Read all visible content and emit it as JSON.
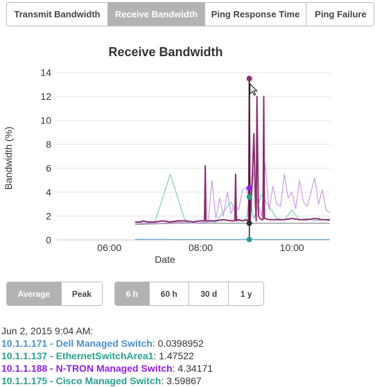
{
  "tabs": [
    {
      "label": "Transmit Bandwidth",
      "active": false
    },
    {
      "label": "Receive Bandwidth",
      "active": true
    },
    {
      "label": "Ping Response Time",
      "active": false
    },
    {
      "label": "Ping Failure",
      "active": false
    }
  ],
  "chart_data": {
    "type": "line",
    "title": "Receive Bandwidth",
    "xlabel": "Date",
    "ylabel": "Bandwidth (%)",
    "ylim": [
      0,
      14.5
    ],
    "yticks": [
      0,
      2,
      4,
      6,
      8,
      10,
      12,
      14
    ],
    "xlim": [
      "04:50",
      "10:50"
    ],
    "xticks": [
      "06:00",
      "08:00",
      "10:00"
    ],
    "grid": "horizontal",
    "crosshair_time": "09:04",
    "cursor_value": 13.5,
    "series": [
      {
        "color": "#8a2e6e",
        "x": [
          "06:34",
          "06:40",
          "06:45",
          "06:50",
          "07:00",
          "07:10",
          "07:20",
          "07:30",
          "07:40",
          "07:50",
          "08:00",
          "08:05",
          "08:06",
          "08:07",
          "08:20",
          "08:30",
          "08:40",
          "08:45",
          "08:46",
          "08:47",
          "08:50",
          "08:55",
          "09:00",
          "09:02",
          "09:03",
          "09:04",
          "09:05",
          "09:06",
          "09:08",
          "09:10",
          "09:12",
          "09:13",
          "09:14",
          "09:16",
          "09:18",
          "09:20",
          "09:22",
          "09:23",
          "09:24",
          "09:30",
          "09:40",
          "09:50",
          "10:00",
          "10:10",
          "10:20",
          "10:30",
          "10:40",
          "10:50"
        ],
        "y": [
          1.5,
          1.5,
          1.6,
          1.5,
          1.5,
          1.6,
          1.5,
          1.6,
          1.6,
          1.5,
          1.6,
          1.6,
          6.2,
          1.6,
          1.6,
          1.7,
          1.6,
          1.6,
          5.5,
          1.6,
          1.7,
          1.6,
          1.7,
          1.6,
          1.6,
          13.5,
          1.5,
          2.5,
          5.5,
          8.9,
          3.0,
          1.6,
          12.0,
          2.0,
          1.8,
          1.7,
          1.7,
          12.0,
          1.8,
          1.7,
          1.7,
          1.7,
          1.8,
          1.7,
          1.7,
          1.8,
          1.7,
          1.7
        ]
      },
      {
        "color": "#c99be6",
        "x": [
          "06:34",
          "06:50",
          "07:10",
          "07:30",
          "07:50",
          "08:10",
          "08:15",
          "08:20",
          "08:25",
          "08:30",
          "08:35",
          "08:40",
          "08:45",
          "08:50",
          "08:55",
          "09:00",
          "09:05",
          "09:10",
          "09:15",
          "09:20",
          "09:25",
          "09:30",
          "09:35",
          "09:40",
          "09:45",
          "09:50",
          "09:55",
          "10:00",
          "10:05",
          "10:10",
          "10:15",
          "10:20",
          "10:25",
          "10:30",
          "10:35",
          "10:40",
          "10:45",
          "10:50"
        ],
        "y": [
          1.4,
          1.4,
          1.4,
          1.5,
          1.4,
          1.5,
          5.0,
          1.8,
          3.5,
          2.0,
          4.0,
          2.2,
          3.0,
          2.5,
          4.2,
          4.4,
          2.4,
          5.8,
          3.0,
          2.0,
          6.4,
          2.5,
          4.5,
          3.0,
          2.8,
          5.5,
          3.5,
          4.0,
          2.6,
          5.0,
          3.2,
          2.8,
          4.0,
          5.2,
          3.0,
          4.2,
          2.5,
          2.3
        ]
      },
      {
        "color": "#7fc8c8",
        "x": [
          "06:34",
          "06:50",
          "07:00",
          "07:20",
          "07:40",
          "08:00",
          "08:20",
          "08:40",
          "08:50",
          "09:00",
          "09:04",
          "09:10",
          "09:20",
          "09:30",
          "09:40",
          "09:50",
          "10:00",
          "10:10",
          "10:20",
          "10:30",
          "10:40",
          "10:50"
        ],
        "y": [
          1.5,
          1.4,
          1.5,
          5.5,
          1.5,
          1.6,
          1.5,
          3.2,
          1.6,
          1.6,
          3.6,
          1.8,
          3.8,
          2.8,
          1.8,
          1.7,
          2.5,
          1.7,
          1.8,
          1.6,
          1.7,
          1.6
        ]
      },
      {
        "color": "#888888",
        "x": [
          "06:34",
          "07:30",
          "08:30",
          "09:00",
          "09:04",
          "09:30",
          "10:00",
          "10:50"
        ],
        "y": [
          1.3,
          1.4,
          1.4,
          1.4,
          1.4,
          1.4,
          1.4,
          1.4
        ]
      },
      {
        "color": "#5aa7d6",
        "x": [
          "06:34",
          "07:30",
          "08:30",
          "09:04",
          "10:00",
          "10:50"
        ],
        "y": [
          0.05,
          0.04,
          0.04,
          0.04,
          0.04,
          0.04
        ]
      }
    ],
    "markers": [
      {
        "time": "09:04",
        "value": 13.5,
        "color": "#8a2e6e"
      },
      {
        "time": "09:04",
        "value": 4.34171,
        "color": "#8e1fe0"
      },
      {
        "time": "09:04",
        "value": 3.59867,
        "color": "#2b9f8e"
      },
      {
        "time": "09:04",
        "value": 1.4,
        "color": "#333333"
      },
      {
        "time": "09:04",
        "value": 0.0398952,
        "color": "#2b9f8e"
      }
    ]
  },
  "mode_buttons": [
    {
      "label": "Average",
      "active": true
    },
    {
      "label": "Peak",
      "active": false
    }
  ],
  "range_buttons": [
    {
      "label": "6 h",
      "active": true
    },
    {
      "label": "60 h",
      "active": false
    },
    {
      "label": "30 d",
      "active": false
    },
    {
      "label": "1 y",
      "active": false
    }
  ],
  "readout": {
    "timestamp": "Jun 2, 2015 9:04 AM:",
    "rows": [
      {
        "device": "10.1.1.171 - Dell Managed Switch",
        "value": "0.0398952",
        "color": "#4a90c8"
      },
      {
        "device": "10.1.1.137 - EthernetSwitchArea1",
        "value": "1.47522",
        "color": "#2b9f8e"
      },
      {
        "device": "10.1.1.188 - N-TRON Managed Switch",
        "value": "4.34171",
        "color": "#8e1fe0"
      },
      {
        "device": "10.1.1.175 - Cisco Managed Switch",
        "value": "3.59867",
        "color": "#2b9f8e"
      }
    ]
  }
}
